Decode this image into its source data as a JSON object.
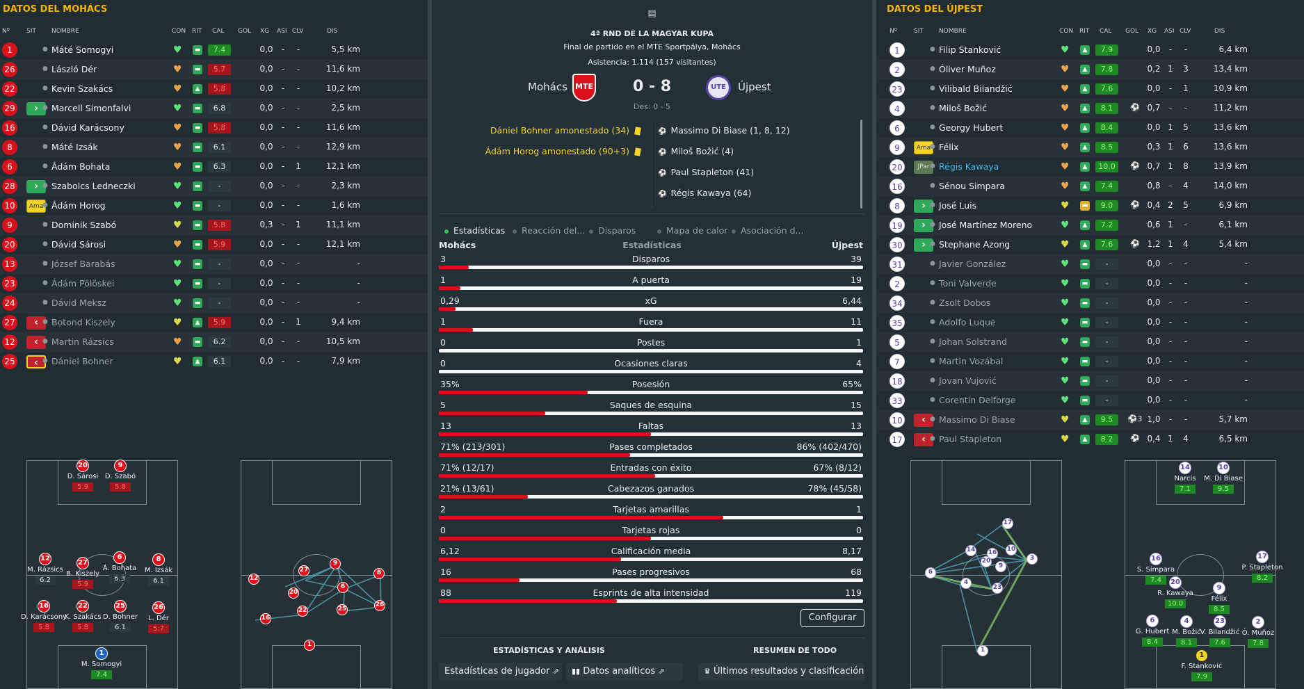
{
  "left": {
    "title": "DATOS DEL MOHÁCS",
    "headers": {
      "num": "Nº",
      "sit": "SIT",
      "name": "NOMBRE",
      "con": "CON",
      "rit": "RIT",
      "cal": "CAL",
      "gol": "GOL",
      "xg": "XG",
      "asi": "ASI",
      "clv": "CLV",
      "dis": "DIS"
    },
    "players": [
      {
        "num": "1",
        "sit": "",
        "name": "Máté Somogyi",
        "heart": "g",
        "rit": "n",
        "cal": "7.4",
        "calc": "g",
        "gol": "",
        "xg": "0,0",
        "asi": "-",
        "clv": "-",
        "dis": "5,5 km",
        "dim": false
      },
      {
        "num": "26",
        "sit": "",
        "name": "László Dér",
        "heart": "o",
        "rit": "n",
        "cal": "5.7",
        "calc": "r",
        "gol": "",
        "xg": "0,0",
        "asi": "-",
        "clv": "-",
        "dis": "11,6 km",
        "dim": false
      },
      {
        "num": "22",
        "sit": "",
        "name": "Kevin Szakács",
        "heart": "o",
        "rit": "u",
        "cal": "5.8",
        "calc": "r",
        "gol": "",
        "xg": "0,0",
        "asi": "-",
        "clv": "-",
        "dis": "10,2 km",
        "dim": false
      },
      {
        "num": "29",
        "sit": "in",
        "name": "Marcell Simonfalvi",
        "heart": "g",
        "rit": "n",
        "cal": "6.8",
        "calc": "n",
        "gol": "",
        "xg": "0,0",
        "asi": "-",
        "clv": "-",
        "dis": "2,5 km",
        "dim": false
      },
      {
        "num": "16",
        "sit": "",
        "name": "Dávid Karácsony",
        "heart": "o",
        "rit": "n",
        "cal": "5.8",
        "calc": "r",
        "gol": "",
        "xg": "0,0",
        "asi": "-",
        "clv": "-",
        "dis": "11,6 km",
        "dim": false
      },
      {
        "num": "8",
        "sit": "",
        "name": "Máté Izsák",
        "heart": "o",
        "rit": "n",
        "cal": "6.1",
        "calc": "n",
        "gol": "",
        "xg": "0,0",
        "asi": "-",
        "clv": "-",
        "dis": "12,9 km",
        "dim": false
      },
      {
        "num": "6",
        "sit": "",
        "name": "Ádám Bohata",
        "heart": "o",
        "rit": "n",
        "cal": "6.3",
        "calc": "n",
        "gol": "",
        "xg": "0,0",
        "asi": "-",
        "clv": "1",
        "dis": "12,1 km",
        "dim": false
      },
      {
        "num": "28",
        "sit": "in",
        "name": "Szabolcs Ledneczki",
        "heart": "g",
        "rit": "n",
        "cal": "-",
        "calc": "n",
        "gol": "",
        "xg": "0,0",
        "asi": "-",
        "clv": "-",
        "dis": "2,3 km",
        "dim": false
      },
      {
        "num": "10",
        "sit": "ama",
        "name": "Ádám Horog",
        "heart": "g",
        "rit": "n",
        "cal": "-",
        "calc": "n",
        "gol": "",
        "xg": "0,0",
        "asi": "-",
        "clv": "-",
        "dis": "1,6 km",
        "dim": false
      },
      {
        "num": "9",
        "sit": "",
        "name": "Dominik Szabó",
        "heart": "y",
        "rit": "n",
        "cal": "5.8",
        "calc": "r",
        "gol": "",
        "xg": "0,3",
        "asi": "-",
        "clv": "1",
        "dis": "11,1 km",
        "dim": false
      },
      {
        "num": "20",
        "sit": "",
        "name": "Dávid Sárosi",
        "heart": "o",
        "rit": "n",
        "cal": "5.9",
        "calc": "r",
        "gol": "",
        "xg": "0,0",
        "asi": "-",
        "clv": "-",
        "dis": "12,1 km",
        "dim": false
      },
      {
        "num": "13",
        "sit": "",
        "name": "József Barabás",
        "heart": "g",
        "rit": "n",
        "cal": "-",
        "calc": "n",
        "gol": "",
        "xg": "0,0",
        "asi": "-",
        "clv": "-",
        "dis": "-",
        "dim": true
      },
      {
        "num": "23",
        "sit": "",
        "name": "Ádám Pölöskei",
        "heart": "g",
        "rit": "n",
        "cal": "-",
        "calc": "n",
        "gol": "",
        "xg": "0,0",
        "asi": "-",
        "clv": "-",
        "dis": "-",
        "dim": true
      },
      {
        "num": "24",
        "sit": "",
        "name": "Dávid Meksz",
        "heart": "g",
        "rit": "n",
        "cal": "-",
        "calc": "n",
        "gol": "",
        "xg": "0,0",
        "asi": "-",
        "clv": "-",
        "dis": "-",
        "dim": true
      },
      {
        "num": "27",
        "sit": "out",
        "name": "Botond Kiszely",
        "heart": "y",
        "rit": "u",
        "cal": "5.9",
        "calc": "r",
        "gol": "",
        "xg": "0,0",
        "asi": "-",
        "clv": "1",
        "dis": "9,4 km",
        "dim": true
      },
      {
        "num": "12",
        "sit": "out",
        "name": "Martin Rázsics",
        "heart": "o",
        "rit": "n",
        "cal": "6.2",
        "calc": "n",
        "gol": "",
        "xg": "0,0",
        "asi": "-",
        "clv": "-",
        "dis": "10,5 km",
        "dim": true
      },
      {
        "num": "25",
        "sit": "amaout",
        "name": "Dániel Bohner",
        "heart": "y",
        "rit": "u",
        "cal": "6.1",
        "calc": "n",
        "gol": "",
        "xg": "0,0",
        "asi": "-",
        "clv": "-",
        "dis": "7,9 km",
        "dim": true
      }
    ],
    "lineup": [
      {
        "n": "20",
        "name": "D. Sárosi",
        "r": "5.9",
        "c": "r"
      },
      {
        "n": "9",
        "name": "D. Szabó",
        "r": "5.8",
        "c": "r"
      },
      {
        "n": "12",
        "name": "M. Rázsics",
        "r": "6.2",
        "c": "n"
      },
      {
        "n": "27",
        "name": "B. Kiszely",
        "r": "5.9",
        "c": "r"
      },
      {
        "n": "6",
        "name": "Á. Bohata",
        "r": "6.3",
        "c": "n"
      },
      {
        "n": "8",
        "name": "M. Izsák",
        "r": "6.1",
        "c": "n"
      },
      {
        "n": "16",
        "name": "D. Karácsony",
        "r": "5.8",
        "c": "r"
      },
      {
        "n": "22",
        "name": "K. Szakács",
        "r": "5.8",
        "c": "r"
      },
      {
        "n": "25",
        "name": "D. Bohner",
        "r": "6.1",
        "c": "n"
      },
      {
        "n": "26",
        "name": "L. Dér",
        "r": "5.7",
        "c": "r"
      },
      {
        "n": "1",
        "name": "M. Somogyi",
        "r": "7.4",
        "c": "g"
      }
    ]
  },
  "match": {
    "competition": "4ª RND DE LA MAGYAR KUPA",
    "subtitle": "Final de partido en el MTE Sportpálya, Mohács",
    "attendance": "Asistencia: 1.114 (157 visitantes)",
    "home": "Mohács",
    "away": "Újpest",
    "score": "0 - 8",
    "extra": "Des: 0 - 5",
    "home_events": [
      "Dániel Bohner amonestado (34)",
      "Ádám Horog amonestado (90+3)"
    ],
    "away_events": [
      "Massimo Di Biase (1, 8, 12)",
      "Miloš Božić (4)",
      "Paul Stapleton (41)",
      "Régis Kawaya (64)"
    ]
  },
  "tabs": [
    "Estadísticas",
    "Reacción del...",
    "Disparos",
    "Mapa de calor",
    "Asociación d..."
  ],
  "stats_header": {
    "home": "Mohács",
    "title": "Estadísticas",
    "away": "Újpest"
  },
  "stats": [
    {
      "label": "Disparos",
      "home": "3",
      "away": "39",
      "frac": 0.07
    },
    {
      "label": "A puerta",
      "home": "1",
      "away": "19",
      "frac": 0.05
    },
    {
      "label": "xG",
      "home": "0,29",
      "away": "6,44",
      "frac": 0.04
    },
    {
      "label": "Fuera",
      "home": "1",
      "away": "11",
      "frac": 0.08
    },
    {
      "label": "Postes",
      "home": "0",
      "away": "1",
      "frac": 0
    },
    {
      "label": "Ocasiones claras",
      "home": "0",
      "away": "4",
      "frac": 0
    },
    {
      "label": "Posesión",
      "home": "35%",
      "away": "65%",
      "frac": 0.35
    },
    {
      "label": "Saques de esquina",
      "home": "5",
      "away": "15",
      "frac": 0.25
    },
    {
      "label": "Faltas",
      "home": "13",
      "away": "13",
      "frac": 0.5
    },
    {
      "label": "Pases completados",
      "home": "71% (213/301)",
      "away": "86% (402/470)",
      "frac": 0.45
    },
    {
      "label": "Entradas con éxito",
      "home": "71% (12/17)",
      "away": "67% (8/12)",
      "frac": 0.51
    },
    {
      "label": "Cabezazos ganados",
      "home": "21% (13/61)",
      "away": "78% (45/58)",
      "frac": 0.21
    },
    {
      "label": "Tarjetas amarillas",
      "home": "2",
      "away": "1",
      "frac": 0.67
    },
    {
      "label": "Tarjetas rojas",
      "home": "0",
      "away": "0",
      "frac": 0.5
    },
    {
      "label": "Calificación media",
      "home": "6,12",
      "away": "8,17",
      "frac": 0.43
    },
    {
      "label": "Pases progresivos",
      "home": "16",
      "away": "68",
      "frac": 0.19
    },
    {
      "label": "Esprints de alta intensidad",
      "home": "88",
      "away": "119",
      "frac": 0.42
    }
  ],
  "configure": "Configurar",
  "sections": {
    "left": "ESTADÍSTICAS Y ANÁLISIS",
    "right": "RESUMEN DE TODO"
  },
  "buttons": [
    "Estadísticas de jugador",
    "Datos analíticos",
    "Últimos resultados y clasificación"
  ],
  "right": {
    "title": "DATOS DEL ÚJPEST",
    "headers": {
      "num": "Nº",
      "sit": "SIT",
      "name": "NOMBRE",
      "con": "CON",
      "rit": "RIT",
      "cal": "CAL",
      "gol": "GOL",
      "xg": "XG",
      "asi": "ASI",
      "clv": "CLV",
      "dis": "DIS"
    },
    "players": [
      {
        "num": "1",
        "sit": "",
        "name": "Filip Stanković",
        "heart": "g",
        "rit": "u",
        "cal": "7.9",
        "calc": "g",
        "gol": "",
        "xg": "0,0",
        "asi": "-",
        "clv": "-",
        "dis": "6,4 km",
        "dim": false
      },
      {
        "num": "2",
        "sit": "",
        "name": "Óliver Muñoz",
        "heart": "o",
        "rit": "u",
        "cal": "7.8",
        "calc": "g",
        "gol": "",
        "xg": "0,2",
        "asi": "1",
        "clv": "3",
        "dis": "13,4 km",
        "dim": false
      },
      {
        "num": "23",
        "sit": "",
        "name": "Vilibald Bilandžić",
        "heart": "o",
        "rit": "u",
        "cal": "7.6",
        "calc": "g",
        "gol": "",
        "xg": "0,0",
        "asi": "-",
        "clv": "1",
        "dis": "10,9 km",
        "dim": false
      },
      {
        "num": "4",
        "sit": "",
        "name": "Miloš Božić",
        "heart": "o",
        "rit": "u",
        "cal": "8.1",
        "calc": "g",
        "gol": "⚽",
        "xg": "0,7",
        "asi": "-",
        "clv": "-",
        "dis": "11,2 km",
        "dim": false
      },
      {
        "num": "6",
        "sit": "",
        "name": "Georgy Hubert",
        "heart": "o",
        "rit": "u",
        "cal": "8.4",
        "calc": "g",
        "gol": "",
        "xg": "0,0",
        "asi": "1",
        "clv": "5",
        "dis": "13,6 km",
        "dim": false
      },
      {
        "num": "9",
        "sit": "ama",
        "name": "Félix",
        "heart": "o",
        "rit": "u",
        "cal": "8.5",
        "calc": "g",
        "gol": "",
        "xg": "0,3",
        "asi": "1",
        "clv": "6",
        "dis": "13,6 km",
        "dim": false
      },
      {
        "num": "20",
        "sit": "jpar",
        "name": "Régis Kawaya",
        "heart": "o",
        "rit": "u",
        "cal": "10.0",
        "calc": "g",
        "gol": "⚽",
        "xg": "0,7",
        "asi": "1",
        "clv": "8",
        "dis": "13,9 km",
        "dim": false,
        "hl": true
      },
      {
        "num": "16",
        "sit": "",
        "name": "Sénou Simpara",
        "heart": "o",
        "rit": "u",
        "cal": "7.4",
        "calc": "g",
        "gol": "",
        "xg": "0,8",
        "asi": "-",
        "clv": "4",
        "dis": "14,0 km",
        "dim": false
      },
      {
        "num": "8",
        "sit": "in",
        "name": "José Luis",
        "heart": "y",
        "rit": "y",
        "cal": "9.0",
        "calc": "g",
        "gol": "⚽",
        "xg": "0,4",
        "asi": "2",
        "clv": "5",
        "dis": "6,9 km",
        "dim": false
      },
      {
        "num": "19",
        "sit": "in",
        "name": "José Martínez Moreno",
        "heart": "g",
        "rit": "u",
        "cal": "7.2",
        "calc": "g",
        "gol": "",
        "xg": "0,6",
        "asi": "1",
        "clv": "-",
        "dis": "6,1 km",
        "dim": false
      },
      {
        "num": "30",
        "sit": "in",
        "name": "Stephane Azong",
        "heart": "y",
        "rit": "u",
        "cal": "7.6",
        "calc": "g",
        "gol": "⚽",
        "xg": "1,2",
        "asi": "1",
        "clv": "4",
        "dis": "5,4 km",
        "dim": false
      },
      {
        "num": "31",
        "sit": "",
        "name": "Javier González",
        "heart": "g",
        "rit": "n",
        "cal": "-",
        "calc": "n",
        "gol": "",
        "xg": "0,0",
        "asi": "-",
        "clv": "-",
        "dis": "-",
        "dim": true
      },
      {
        "num": "2",
        "sit": "",
        "name": "Toni Valverde",
        "heart": "g",
        "rit": "n",
        "cal": "-",
        "calc": "n",
        "gol": "",
        "xg": "0,0",
        "asi": "-",
        "clv": "-",
        "dis": "-",
        "dim": true
      },
      {
        "num": "34",
        "sit": "",
        "name": "Zsolt Dobos",
        "heart": "g",
        "rit": "n",
        "cal": "-",
        "calc": "n",
        "gol": "",
        "xg": "0,0",
        "asi": "-",
        "clv": "-",
        "dis": "-",
        "dim": true
      },
      {
        "num": "35",
        "sit": "",
        "name": "Adolfo Luque",
        "heart": "g",
        "rit": "n",
        "cal": "-",
        "calc": "n",
        "gol": "",
        "xg": "0,0",
        "asi": "-",
        "clv": "-",
        "dis": "-",
        "dim": true
      },
      {
        "num": "5",
        "sit": "",
        "name": "Johan Solstrand",
        "heart": "g",
        "rit": "n",
        "cal": "-",
        "calc": "n",
        "gol": "",
        "xg": "0,0",
        "asi": "-",
        "clv": "-",
        "dis": "-",
        "dim": true
      },
      {
        "num": "7",
        "sit": "",
        "name": "Martin Vozábal",
        "heart": "g",
        "rit": "n",
        "cal": "-",
        "calc": "n",
        "gol": "",
        "xg": "0,0",
        "asi": "-",
        "clv": "-",
        "dis": "-",
        "dim": true
      },
      {
        "num": "18",
        "sit": "",
        "name": "Jovan Vujović",
        "heart": "g",
        "rit": "n",
        "cal": "-",
        "calc": "n",
        "gol": "",
        "xg": "0,0",
        "asi": "-",
        "clv": "-",
        "dis": "-",
        "dim": true
      },
      {
        "num": "33",
        "sit": "",
        "name": "Corentin Delforge",
        "heart": "g",
        "rit": "n",
        "cal": "-",
        "calc": "n",
        "gol": "",
        "xg": "0,0",
        "asi": "-",
        "clv": "-",
        "dis": "-",
        "dim": true
      },
      {
        "num": "10",
        "sit": "out",
        "name": "Massimo Di Biase",
        "heart": "y",
        "rit": "u",
        "cal": "9.5",
        "calc": "g",
        "gol": "⚽3",
        "xg": "1,0",
        "asi": "-",
        "clv": "-",
        "dis": "5,7 km",
        "dim": true
      },
      {
        "num": "17",
        "sit": "out",
        "name": "Paul Stapleton",
        "heart": "y",
        "rit": "u",
        "cal": "8.2",
        "calc": "g",
        "gol": "⚽",
        "xg": "0,4",
        "asi": "1",
        "clv": "4",
        "dis": "6,5 km",
        "dim": true
      }
    ],
    "lineup": [
      {
        "n": "14",
        "name": "Narcis",
        "r": "7.1",
        "c": "g"
      },
      {
        "n": "10",
        "name": "M. Di Biase",
        "r": "9.5",
        "c": "g"
      },
      {
        "n": "16",
        "name": "S. Simpara",
        "r": "7.4",
        "c": "g"
      },
      {
        "n": "17",
        "name": "P. Stapleton",
        "r": "8.2",
        "c": "g"
      },
      {
        "n": "20",
        "name": "R. Kawaya",
        "r": "10.0",
        "c": "g"
      },
      {
        "n": "9",
        "name": "Félix",
        "r": "8.5",
        "c": "g"
      },
      {
        "n": "6",
        "name": "G. Hubert",
        "r": "8.4",
        "c": "g"
      },
      {
        "n": "4",
        "name": "M. Božić",
        "r": "8.1",
        "c": "g"
      },
      {
        "n": "23",
        "name": "V. Bilandžić",
        "r": "7.6",
        "c": "g"
      },
      {
        "n": "2",
        "name": "Ó. Muñoz",
        "r": "7.8",
        "c": "g"
      },
      {
        "n": "1",
        "name": "F. Stanković",
        "r": "7.9",
        "c": "g"
      }
    ]
  },
  "colors": {
    "accent": "#f4b400",
    "home": "#d9111b",
    "away": "#5844a6",
    "good": "#2fa85a"
  }
}
